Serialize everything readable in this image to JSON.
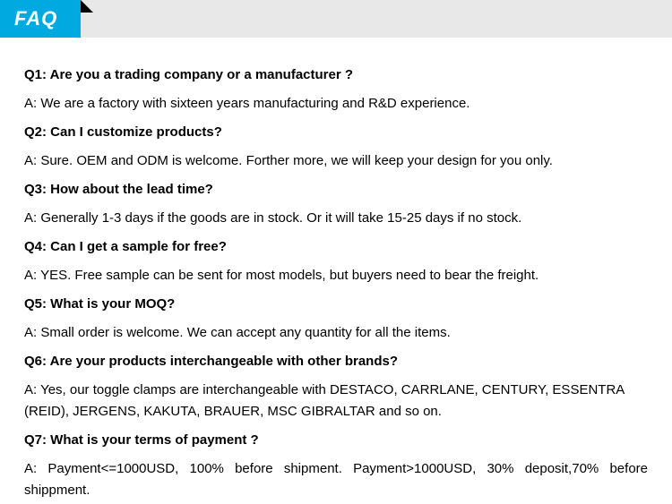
{
  "header": {
    "tab_label": "FAQ"
  },
  "faqs": [
    {
      "question": "Q1:  Are you a trading company or a manufacturer ?",
      "answer": "A: We are a factory with sixteen years manufacturing and R&D experience."
    },
    {
      "question": "Q2: Can I customize products?",
      "answer": "A: Sure. OEM and ODM is welcome. Forther more, we will keep your design for you only."
    },
    {
      "question": "Q3: How about the lead time?",
      "answer": "A: Generally 1-3 days if the goods are in stock. Or it will take 15-25 days if no stock."
    },
    {
      "question": "Q4: Can I get a sample for free?",
      "answer": "A: YES. Free sample can be sent for most models, but buyers need to bear the freight."
    },
    {
      "question": "Q5: What is your MOQ?",
      "answer": "A: Small order is welcome. We can accept any quantity for all the items."
    },
    {
      "question": "Q6: Are your products interchangeable with other brands?",
      "answer": "A: Yes, our toggle clamps are interchangeable with DESTACO,  CARRLANE, CENTURY, ESSENTRA (REID), JERGENS, KAKUTA, BRAUER,  MSC GIBRALTAR and so on."
    },
    {
      "question": "Q7: What is your terms of payment ?",
      "answer": "A: Payment<=1000USD, 100% before shipment. Payment>1000USD, 30% deposit,70% before shippment."
    }
  ],
  "styling": {
    "tab_background_color": "#00a9e0",
    "tab_text_color": "#ffffff",
    "header_bar_color": "#e8e8e8",
    "body_text_color": "#000000",
    "tab_fold_color": "#000000",
    "question_font_size": 15,
    "answer_font_size": 15,
    "tab_font_size": 22
  }
}
